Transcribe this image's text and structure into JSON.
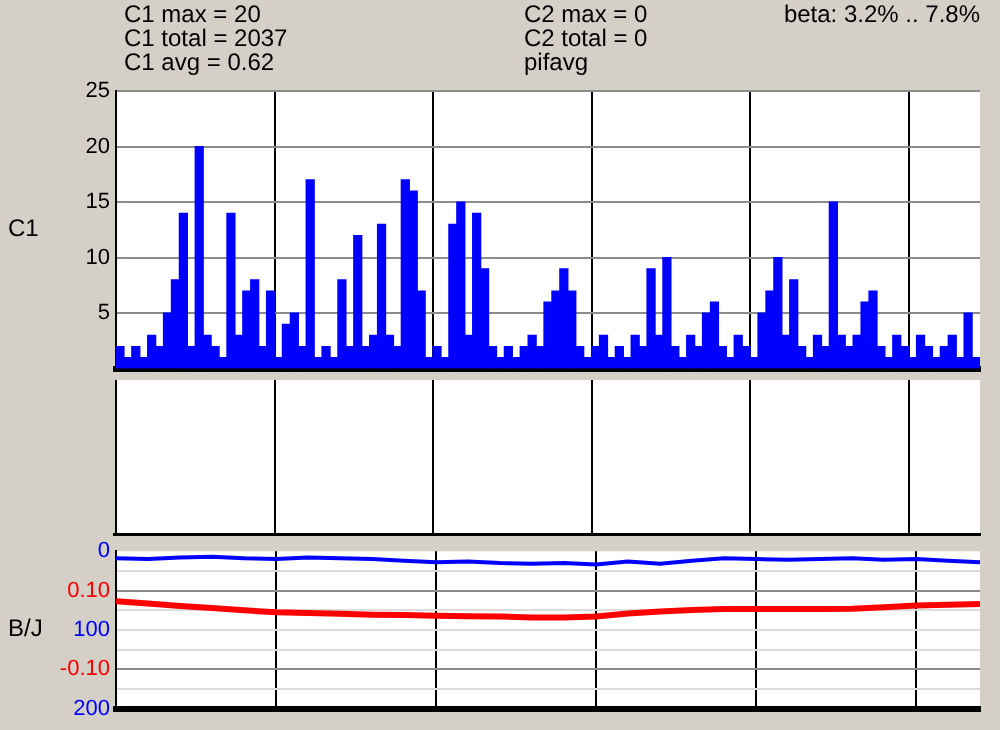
{
  "chart_data": [
    {
      "type": "bar",
      "ylabel": "C1",
      "annotations": [
        "C1 max = 20",
        "C1 total = 2037",
        "C1 avg = 0.62",
        "C2 max = 0",
        "C2 total = 0",
        "pifavg",
        "beta: 3.2% .. 7.8%"
      ],
      "categories": [
        null,
        null,
        null,
        null,
        null,
        null,
        null,
        null,
        null,
        null,
        null,
        null,
        null,
        null,
        null,
        null,
        null,
        null,
        null,
        null,
        null,
        null,
        null,
        null,
        null,
        null,
        null,
        null,
        null,
        null,
        null,
        null,
        null,
        null,
        null,
        null,
        null,
        null,
        null,
        null,
        null,
        null,
        null,
        null,
        null,
        null,
        null,
        null,
        null,
        null,
        null,
        null,
        null,
        null,
        null,
        null,
        null,
        null,
        null,
        null,
        null,
        null,
        null,
        null,
        null,
        null,
        null,
        null,
        null,
        null,
        null,
        null,
        null,
        null,
        null,
        null,
        null,
        null,
        null,
        null,
        null,
        null,
        null,
        null,
        null,
        null,
        null,
        null,
        null,
        null,
        null,
        null,
        null,
        null,
        null,
        null,
        null,
        null,
        null,
        null,
        null,
        null,
        null,
        null,
        null,
        null,
        null,
        null,
        null
      ],
      "values": [
        2,
        1,
        2,
        1,
        3,
        2,
        5,
        8,
        14,
        2,
        20,
        3,
        2,
        1,
        14,
        3,
        7,
        8,
        2,
        7,
        1,
        4,
        5,
        2,
        17,
        1,
        2,
        1,
        8,
        2,
        12,
        2,
        3,
        13,
        3,
        2,
        17,
        16,
        7,
        1,
        2,
        1,
        13,
        15,
        3,
        14,
        9,
        2,
        1,
        2,
        1,
        2,
        3,
        2,
        6,
        7,
        9,
        7,
        2,
        1,
        2,
        3,
        1,
        2,
        1,
        3,
        2,
        9,
        3,
        10,
        2,
        1,
        3,
        2,
        5,
        6,
        2,
        1,
        3,
        2,
        1,
        5,
        7,
        10,
        3,
        8,
        2,
        1,
        3,
        2,
        15,
        3,
        2,
        3,
        6,
        7,
        2,
        1,
        3,
        2,
        1,
        3,
        2,
        1,
        2,
        3,
        1,
        5,
        1
      ],
      "color": "#0000ff",
      "ylim": [
        0,
        25
      ],
      "yticks": [
        {
          "value": 0,
          "label": null
        },
        5,
        10,
        15,
        20,
        25
      ],
      "grid": true,
      "tick_labels": "y"
    },
    {
      "type": "other",
      "categories": [
        null,
        null,
        null,
        null,
        null,
        null,
        null,
        null,
        null,
        null,
        null,
        null,
        null,
        null,
        null,
        null,
        null,
        null,
        null,
        null,
        null,
        null,
        null,
        null,
        null,
        null,
        null,
        null,
        null,
        null,
        null,
        null,
        null,
        null,
        null,
        null,
        null,
        null,
        null,
        null,
        null,
        null,
        null,
        null,
        null,
        null,
        null,
        null,
        null,
        null,
        null,
        null,
        null,
        null,
        null,
        null,
        null,
        null,
        null,
        null,
        null,
        null,
        null,
        null,
        null,
        null,
        null,
        null,
        null,
        null,
        null,
        null,
        null,
        null,
        null,
        null,
        null,
        null,
        null,
        null,
        null,
        null,
        null,
        null,
        null,
        null,
        null,
        null,
        null,
        null,
        null,
        null,
        null,
        null,
        null,
        null,
        null,
        null,
        null,
        null,
        null,
        null,
        null,
        null,
        null,
        null,
        null,
        null,
        null
      ]
    },
    {
      "type": "line",
      "ylabel": "B/J",
      "categories": [
        null,
        null,
        null,
        null,
        null,
        null,
        null,
        null,
        null,
        null,
        null,
        null,
        null,
        null,
        null,
        null,
        null,
        null,
        null,
        null,
        null,
        null,
        null,
        null,
        null,
        null,
        null,
        null
      ],
      "ylim": [
        -0.2,
        0.2
      ],
      "yticks": [
        {
          "value": -0.2,
          "label": null
        },
        {
          "value": -0.15,
          "label": null
        },
        {
          "value": -0.1,
          "label": "-0.10"
        },
        {
          "value": -0.05,
          "label": null
        },
        {
          "value": 0,
          "label": null
        },
        {
          "value": 0.05,
          "label": null
        },
        {
          "value": 0.1,
          "label": "0.10"
        },
        {
          "value": 0.15,
          "label": null
        }
      ],
      "y2lim": [
        200,
        0
      ],
      "y2ticks": [
        0,
        100,
        200
      ],
      "grid": true,
      "tick_labels": "y",
      "series": [
        {
          "axis": "y2",
          "color": "#0000ff",
          "values": [
            9,
            10,
            8,
            7,
            9,
            10,
            8,
            9,
            10,
            12,
            14,
            13,
            15,
            16,
            15,
            17,
            13,
            16,
            12,
            9,
            10,
            11,
            10,
            9,
            11,
            10,
            12,
            14
          ]
        },
        {
          "color": "#ff0000",
          "values": [
            0.073,
            0.067,
            0.061,
            0.056,
            0.05,
            0.045,
            0.043,
            0.041,
            0.039,
            0.038,
            0.036,
            0.035,
            0.034,
            0.032,
            0.032,
            0.034,
            0.042,
            0.047,
            0.051,
            0.053,
            0.053,
            0.053,
            0.053,
            0.054,
            0.058,
            0.062,
            0.064,
            0.066
          ]
        }
      ]
    }
  ]
}
